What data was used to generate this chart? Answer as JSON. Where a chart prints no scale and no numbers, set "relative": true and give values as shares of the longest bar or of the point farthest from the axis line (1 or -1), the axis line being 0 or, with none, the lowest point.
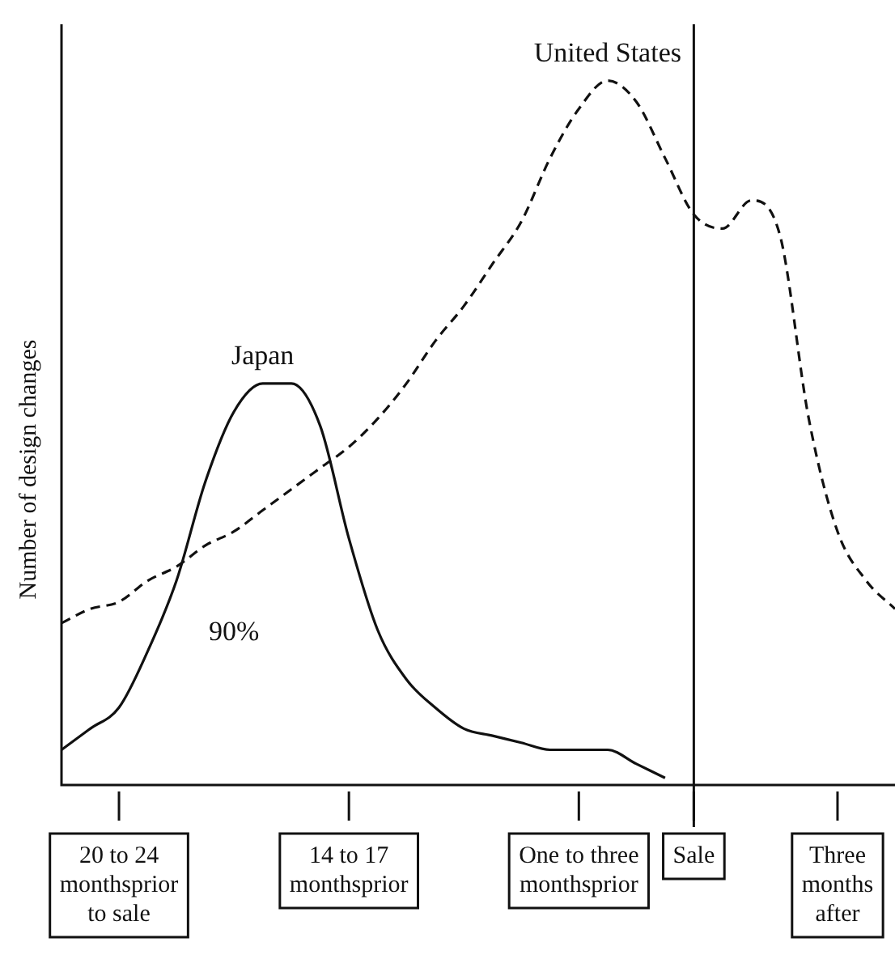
{
  "chart_data": {
    "type": "line",
    "relative": true,
    "ylabel": "Number of design changes",
    "categories": [
      null,
      null,
      "20 to 24 monthsprior to sale",
      null,
      null,
      null,
      null,
      null,
      null,
      null,
      "14 to 17 monthsprior",
      null,
      null,
      null,
      null,
      null,
      null,
      null,
      "One to three monthsprior",
      null,
      null,
      null,
      "Sale",
      null,
      null,
      null,
      null,
      "Three months after",
      null,
      null
    ],
    "series": [
      {
        "name": "Japan",
        "color": "#111111",
        "line_style": "solid",
        "values": [
          0.05,
          0.08,
          0.11,
          0.19,
          0.29,
          0.43,
          0.53,
          0.57,
          0.57,
          0.51,
          0.35,
          0.22,
          0.15,
          0.11,
          0.08,
          0.07,
          0.06,
          0.05,
          0.05,
          0.05,
          0.03,
          0.01,
          null,
          null,
          null,
          null,
          null,
          null,
          null,
          null
        ]
      },
      {
        "name": "United States",
        "color": "#111111",
        "line_style": "dashed",
        "values": [
          0.23,
          0.25,
          0.26,
          0.29,
          0.31,
          0.34,
          0.36,
          0.39,
          0.42,
          0.45,
          0.48,
          0.52,
          0.57,
          0.63,
          0.68,
          0.74,
          0.8,
          0.89,
          0.96,
          1,
          0.97,
          0.89,
          0.81,
          0.79,
          0.83,
          0.78,
          0.52,
          0.36,
          0.29,
          0.25
        ]
      }
    ],
    "annotations": [
      "90%"
    ],
    "ref_lines": [
      {
        "axis": "x",
        "value": "Sale",
        "color": "#111111"
      }
    ],
    "legend": false,
    "marker": "none"
  }
}
